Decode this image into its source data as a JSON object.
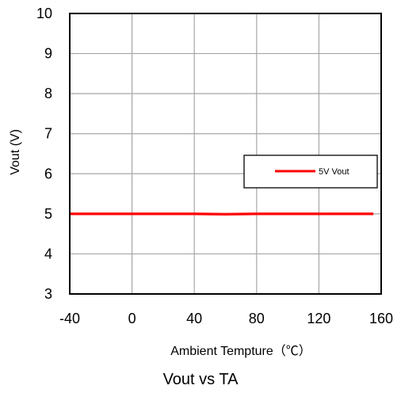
{
  "caption": "Vout vs TA",
  "chart_data": {
    "type": "line",
    "xlabel": "Ambient Tempture（℃）",
    "ylabel": "Vout (V)",
    "xlim": [
      -40,
      160
    ],
    "ylim": [
      3,
      10
    ],
    "x_ticks": [
      -40,
      0,
      40,
      80,
      120,
      160
    ],
    "y_ticks": [
      3,
      4,
      5,
      6,
      7,
      8,
      9,
      10
    ],
    "x_tick_labels": [
      "-40",
      "0",
      "40",
      "80",
      "120",
      "160"
    ],
    "y_tick_labels": [
      "3",
      "4",
      "5",
      "6",
      "7",
      "8",
      "9",
      "10"
    ],
    "grid": true,
    "legend": {
      "placement": "right"
    },
    "series": [
      {
        "name": "5V Vout",
        "color": "#ff0000",
        "x": [
          -40,
          -20,
          0,
          20,
          40,
          60,
          80,
          100,
          120,
          140,
          155
        ],
        "y": [
          5.0,
          5.0,
          5.0,
          5.0,
          5.0,
          4.99,
          5.0,
          5.0,
          5.0,
          5.0,
          5.0
        ]
      }
    ]
  }
}
